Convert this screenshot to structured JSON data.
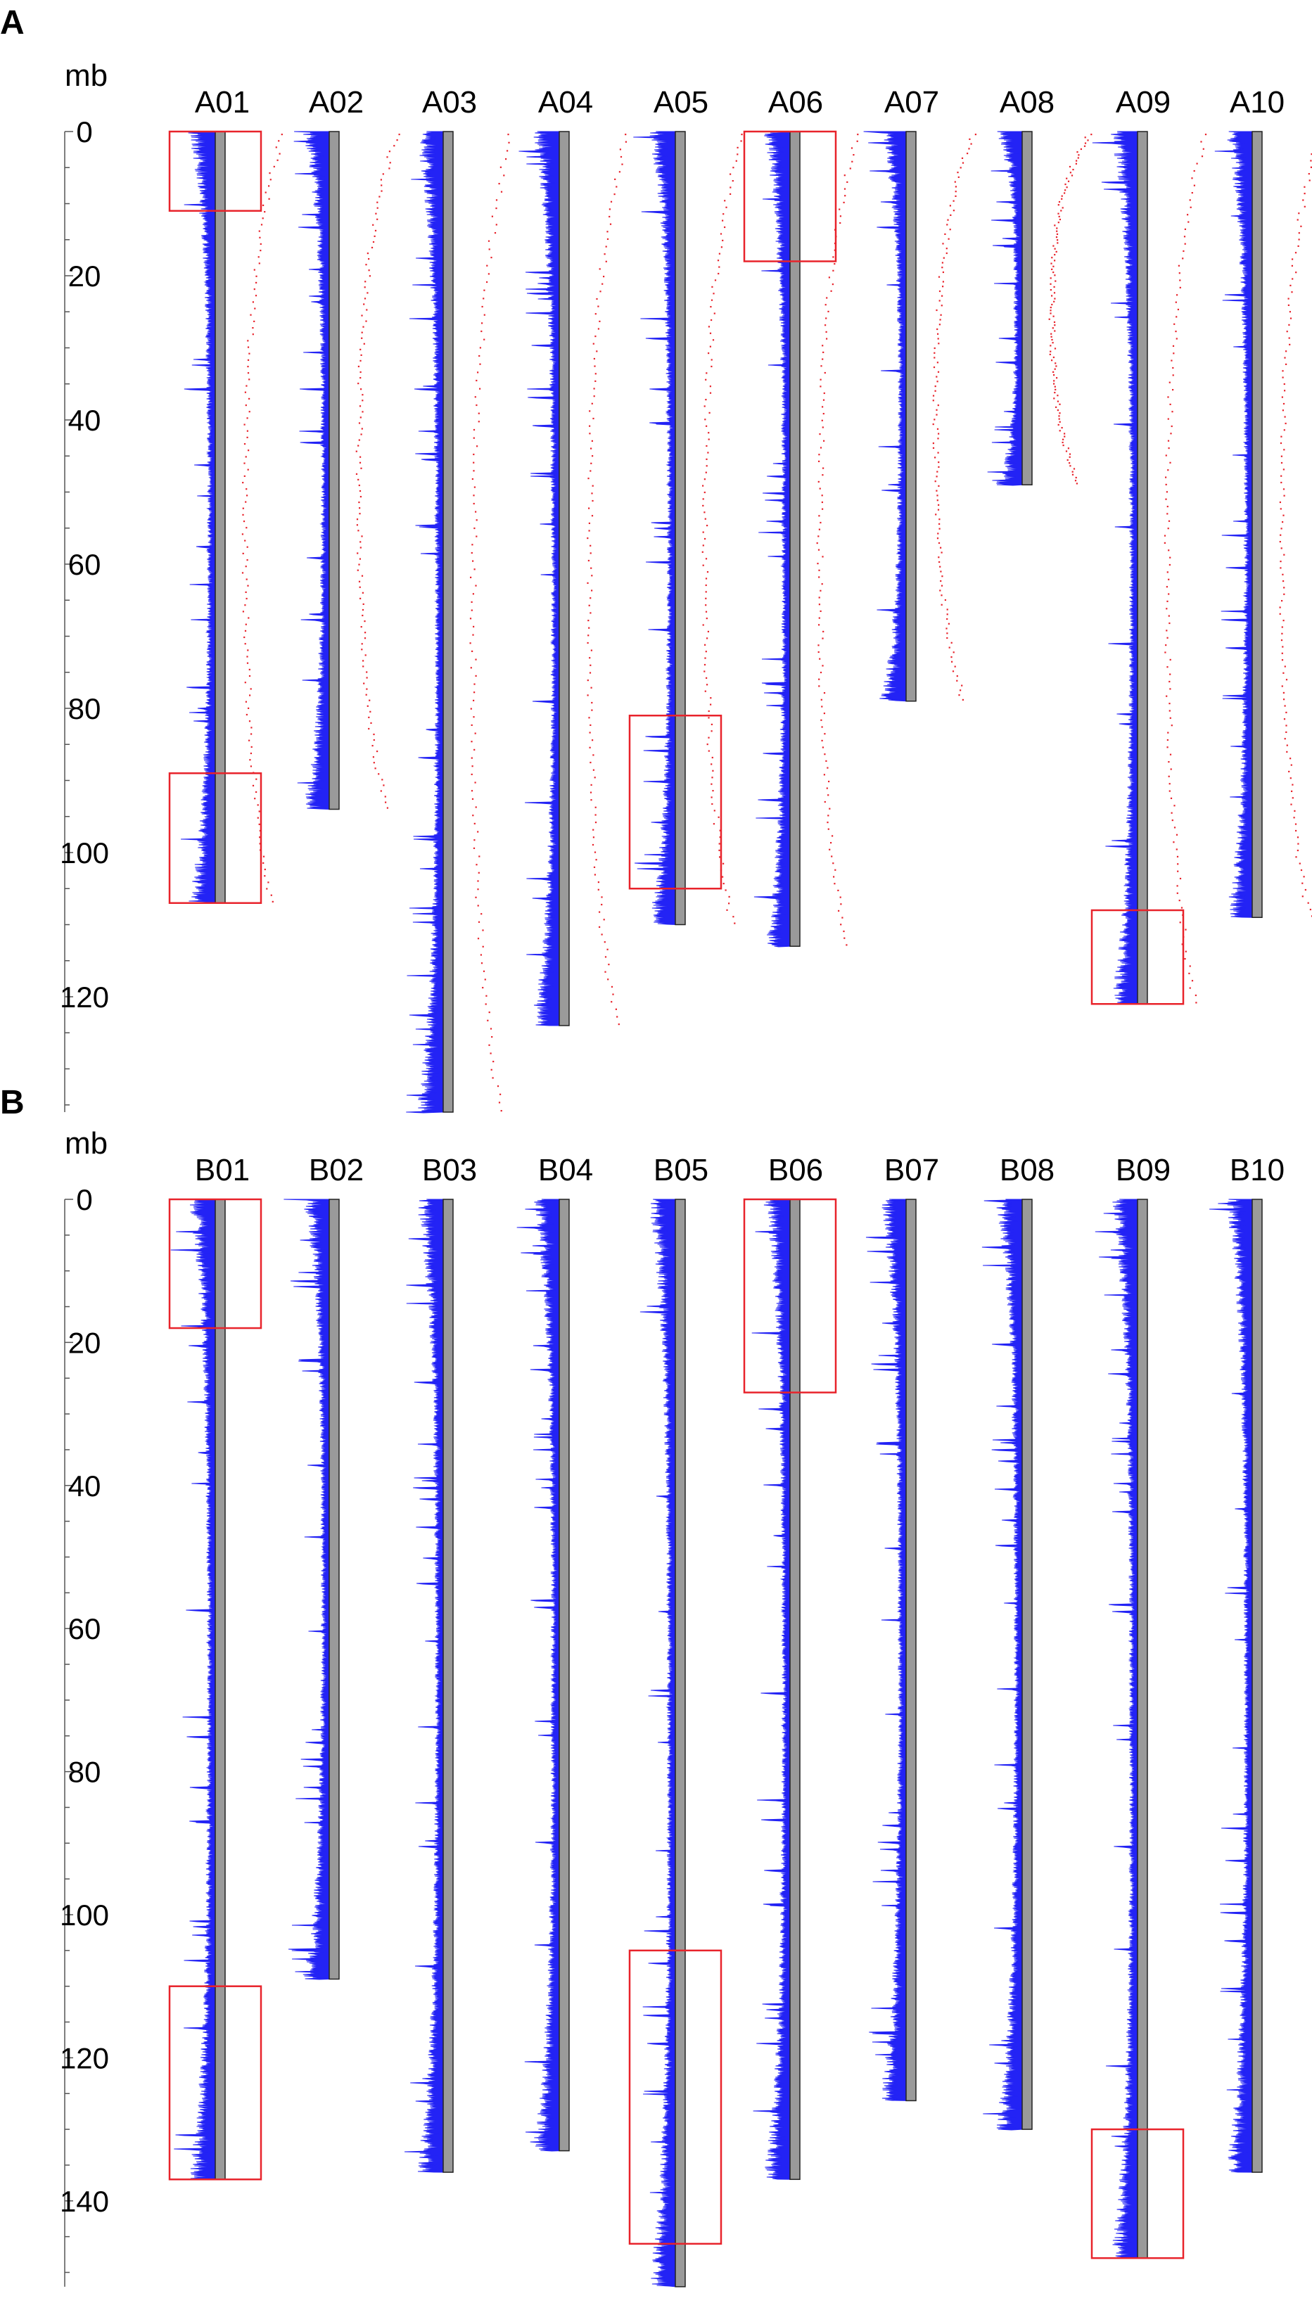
{
  "colors": {
    "density": "#2323f5",
    "chromosome_fill": "#9a9a9a",
    "chromosome_stroke": "#222222",
    "marker": "#e8232b",
    "highlight_box": "#e8232b",
    "axis": "#555555"
  },
  "chart_data": [
    {
      "type": "chromosome-ideogram",
      "panel": "A",
      "ylabel": "mb",
      "ylim": [
        0,
        136
      ],
      "ticks": [
        0,
        20,
        40,
        60,
        80,
        100,
        120
      ],
      "chromosomes": [
        {
          "name": "A01",
          "length": 107,
          "dot_end": 1.0,
          "boxes": [
            [
              0,
              11
            ],
            [
              89,
              107
            ]
          ]
        },
        {
          "name": "A02",
          "length": 94,
          "dot_end": 1.0,
          "boxes": []
        },
        {
          "name": "A03",
          "length": 136,
          "dot_end": 1.0,
          "boxes": []
        },
        {
          "name": "A04",
          "length": 124,
          "dot_end": 1.0,
          "boxes": []
        },
        {
          "name": "A05",
          "length": 110,
          "dot_end": 0.85,
          "boxes": [
            [
              81,
              105
            ]
          ]
        },
        {
          "name": "A06",
          "length": 113,
          "dot_end": 1.0,
          "boxes": [
            [
              0,
              18
            ]
          ]
        },
        {
          "name": "A07",
          "length": 79,
          "dot_end": 1.0,
          "boxes": []
        },
        {
          "name": "A08",
          "length": 49,
          "dot_end": 1.0,
          "boxes": []
        },
        {
          "name": "A09",
          "length": 121,
          "dot_end": 1.0,
          "boxes": [
            [
              108,
              121
            ]
          ]
        },
        {
          "name": "A10",
          "length": 109,
          "dot_end": 1.0,
          "boxes": []
        }
      ]
    },
    {
      "type": "chromosome-ideogram",
      "panel": "B",
      "ylabel": "mb",
      "ylim": [
        0,
        152
      ],
      "ticks": [
        0,
        20,
        40,
        60,
        80,
        100,
        120,
        140
      ],
      "chromosomes": [
        {
          "name": "B01",
          "length": 137,
          "boxes": [
            [
              0,
              18
            ],
            [
              110,
              137
            ]
          ]
        },
        {
          "name": "B02",
          "length": 109,
          "boxes": []
        },
        {
          "name": "B03",
          "length": 136,
          "boxes": []
        },
        {
          "name": "B04",
          "length": 133,
          "boxes": []
        },
        {
          "name": "B05",
          "length": 152,
          "boxes": [
            [
              105,
              146
            ]
          ]
        },
        {
          "name": "B06",
          "length": 137,
          "boxes": [
            [
              0,
              27
            ]
          ]
        },
        {
          "name": "B07",
          "length": 126,
          "boxes": []
        },
        {
          "name": "B08",
          "length": 130,
          "boxes": []
        },
        {
          "name": "B09",
          "length": 148,
          "boxes": [
            [
              130,
              148
            ]
          ]
        },
        {
          "name": "B10",
          "length": 136,
          "boxes": []
        }
      ]
    }
  ]
}
